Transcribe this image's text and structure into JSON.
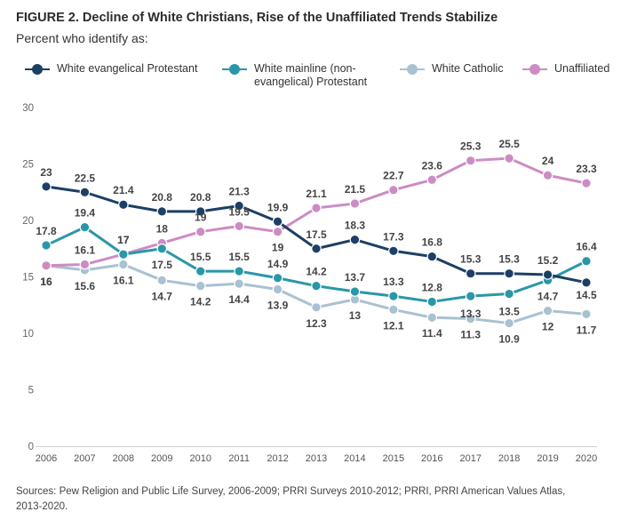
{
  "header": {
    "title": "FIGURE 2.  Decline of White Christians, Rise of the Unaffiliated Trends Stabilize",
    "subtitle": "Percent who identify as:"
  },
  "footer": {
    "source_line1": "Sources: Pew Religion and Public Life Survey, 2006-2009; PRRI Surveys 2010-2012; PRRI, PRRI American Values Atlas,",
    "source_line2": "2013-2020."
  },
  "chart_data": {
    "type": "line",
    "x": [
      "2006",
      "2007",
      "2008",
      "2009",
      "2010",
      "2011",
      "2012",
      "2013",
      "2014",
      "2015",
      "2016",
      "2017",
      "2018",
      "2019",
      "2020"
    ],
    "ylim": [
      0,
      30
    ],
    "yticks": [
      0,
      5,
      10,
      15,
      20,
      25,
      30
    ],
    "grid": false,
    "legend_placement": "top",
    "series": [
      {
        "name": "White evangelical Protestant",
        "color": "#1c3f66",
        "values": [
          23,
          22.5,
          21.4,
          20.8,
          20.8,
          21.3,
          19.9,
          17.5,
          18.3,
          17.3,
          16.8,
          15.3,
          15.3,
          15.2,
          14.5
        ]
      },
      {
        "name": "White mainline (non-evangelical) Protestant",
        "color": "#2a97a8",
        "values": [
          17.8,
          19.4,
          17,
          17.5,
          15.5,
          15.5,
          14.9,
          14.2,
          13.7,
          13.3,
          12.8,
          13.3,
          13.5,
          14.7,
          16.4
        ]
      },
      {
        "name": "White Catholic",
        "color": "#a9c1d1",
        "values": [
          16,
          15.6,
          16.1,
          14.7,
          14.2,
          14.4,
          13.9,
          12.3,
          13,
          12.1,
          11.4,
          11.3,
          10.9,
          12,
          11.7
        ]
      },
      {
        "name": "Unaffiliated",
        "color": "#cc8cc3",
        "values": [
          16,
          16.1,
          17,
          18,
          19,
          19.5,
          19,
          21.1,
          21.5,
          22.7,
          23.6,
          25.3,
          25.5,
          24,
          23.3
        ]
      }
    ]
  }
}
